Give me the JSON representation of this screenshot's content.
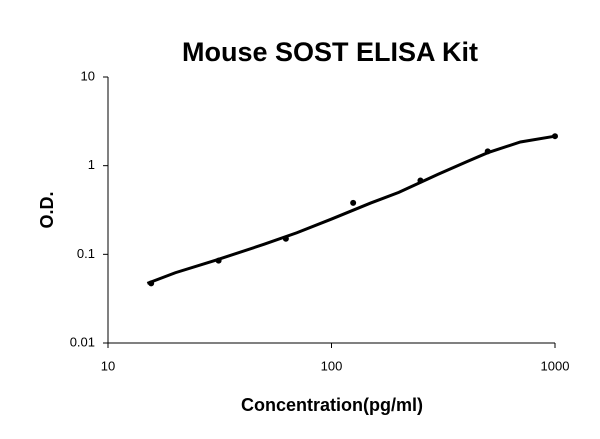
{
  "chart_data": {
    "type": "scatter",
    "title": "Mouse SOST ELISA Kit",
    "x_label": "Concentration(pg/ml)",
    "y_label": "O.D.",
    "x_scale": "log",
    "y_scale": "log",
    "xlim": [
      10,
      1000
    ],
    "ylim": [
      0.01,
      10
    ],
    "xticks": [
      10,
      100,
      1000
    ],
    "yticks": [
      0.01,
      0.1,
      1,
      10
    ],
    "series": [
      {
        "style": "markers",
        "color": "#000000",
        "x": [
          15.6,
          31.25,
          62.5,
          125,
          250,
          500,
          1000
        ],
        "values": [
          0.047,
          0.085,
          0.15,
          0.38,
          0.68,
          1.45,
          2.15
        ]
      },
      {
        "style": "line",
        "color": "#000000",
        "x": [
          15,
          20,
          30,
          50,
          70,
          100,
          150,
          200,
          300,
          400,
          500,
          700,
          1000
        ],
        "values": [
          0.047,
          0.062,
          0.085,
          0.13,
          0.175,
          0.25,
          0.38,
          0.5,
          0.8,
          1.1,
          1.4,
          1.85,
          2.15
        ]
      }
    ]
  }
}
